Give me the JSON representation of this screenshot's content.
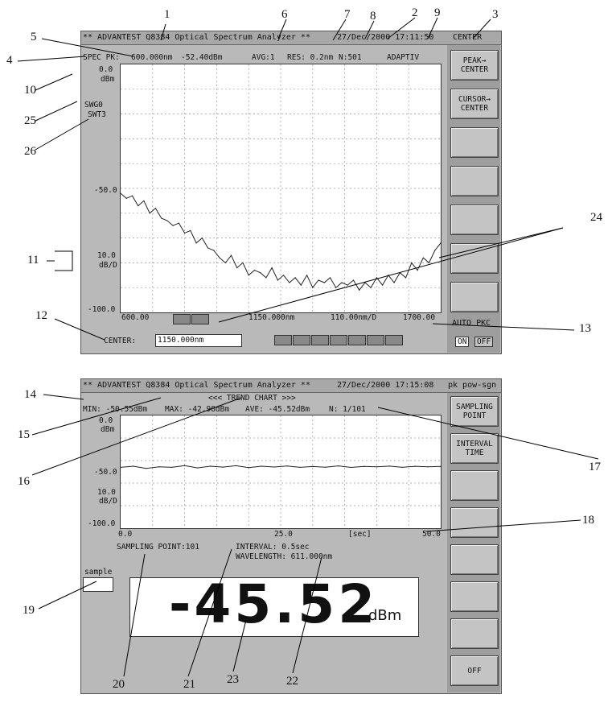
{
  "top_screen": {
    "title": "** ADVANTEST Q8384 Optical Spectrum Analyzer **",
    "date_time": "27/Dec/2000 17:11:50",
    "active_function": "CENTER",
    "marker_line": {
      "label": "SPEC PK:",
      "wavelength": "600.000nm",
      "level": "-52.40dBm",
      "avg": "AVG:1",
      "res": "RES: 0.2nm",
      "points": "N:501",
      "mode": "ADAPTIV"
    },
    "y_labels": {
      "top": "0.0",
      "top_unit": "dBm",
      "mid": "-50.0",
      "scale": "10.0",
      "scale_unit": "dB/D",
      "bottom": "-100.0"
    },
    "sweep_labels": {
      "swg": "SWG0",
      "swt": "SWT3"
    },
    "x_labels": {
      "start": "600.00",
      "center": "1150.000nm",
      "span": "110.00nm/D",
      "stop": "1700.00"
    },
    "center_label": "CENTER:",
    "center_value": "1150.000nm",
    "status_buttons": [
      "",
      "",
      "",
      "",
      "",
      "",
      ""
    ],
    "softkeys": [
      "PEAK→\nCENTER",
      "CURSOR→\nCENTER",
      "",
      "",
      "",
      "",
      "",
      "AUTO PKC"
    ],
    "toggle": {
      "on": "ON",
      "off": "OFF"
    },
    "chart_data": {
      "type": "line",
      "title": "",
      "xlabel": "",
      "ylabel": "",
      "xlim": [
        600,
        1700
      ],
      "ylim": [
        -100,
        0
      ],
      "x": [
        600,
        620,
        640,
        660,
        680,
        700,
        720,
        740,
        760,
        780,
        800,
        820,
        840,
        860,
        880,
        900,
        920,
        940,
        960,
        980,
        1000,
        1020,
        1040,
        1060,
        1080,
        1100,
        1120,
        1140,
        1160,
        1180,
        1200,
        1220,
        1240,
        1260,
        1280,
        1300,
        1320,
        1340,
        1360,
        1380,
        1400,
        1420,
        1440,
        1460,
        1480,
        1500,
        1520,
        1540,
        1560,
        1580,
        1600,
        1620,
        1640,
        1660,
        1680,
        1700
      ],
      "y": [
        -52,
        -54,
        -53,
        -57,
        -55,
        -60,
        -58,
        -62,
        -63,
        -65,
        -64,
        -68,
        -67,
        -72,
        -70,
        -74,
        -75,
        -78,
        -80,
        -77,
        -82,
        -80,
        -85,
        -83,
        -84,
        -86,
        -82,
        -87,
        -85,
        -88,
        -86,
        -89,
        -85,
        -90,
        -87,
        -88,
        -86,
        -90,
        -88,
        -89,
        -87,
        -91,
        -88,
        -90,
        -86,
        -89,
        -85,
        -88,
        -84,
        -86,
        -80,
        -83,
        -78,
        -80,
        -75,
        -72
      ]
    }
  },
  "bottom_screen": {
    "title": "** ADVANTEST Q8384 Optical Spectrum Analyzer **",
    "date_time": "27/Dec/2000 17:15:08",
    "active_function": "pk pow-sgn",
    "chart_title": "<<<  TREND CHART  >>>",
    "stats": {
      "min": "MIN: -50.55dBm",
      "max": "MAX: -42.98dBm",
      "ave": "AVE: -45.52dBm",
      "n": "N:   1/101"
    },
    "y_labels": {
      "top": "0.0",
      "top_unit": "dBm",
      "mid": "-50.0",
      "scale": "10.0",
      "scale_unit": "dB/D",
      "bottom": "-100.0"
    },
    "x_labels": {
      "start": "0.0",
      "mid": "25.0",
      "unit": "[sec]",
      "end": "50.0"
    },
    "sampling_point": "SAMPLING POINT:101",
    "interval": "INTERVAL:    0.5sec",
    "wavelength": "WAVELENGTH:  611.000nm",
    "sample_label": "sample",
    "big_value": "-45.52",
    "big_unit": "dBm",
    "softkeys": [
      "SAMPLING\nPOINT",
      "INTERVAL\nTIME",
      "",
      "",
      "",
      "",
      "",
      "OFF"
    ],
    "chart_data": {
      "type": "line",
      "title": "TREND CHART",
      "xlabel": "[sec]",
      "ylabel": "",
      "xlim": [
        0,
        50
      ],
      "ylim": [
        -100,
        0
      ],
      "x": [
        0,
        2,
        4,
        6,
        8,
        10,
        12,
        14,
        16,
        18,
        20,
        22,
        24,
        26,
        28,
        30,
        32,
        34,
        36,
        38,
        40,
        42,
        44,
        46,
        48,
        50
      ],
      "y": [
        -46,
        -45,
        -47,
        -45.5,
        -46,
        -44.5,
        -46.5,
        -45,
        -45.8,
        -44.6,
        -46.2,
        -45,
        -45.7,
        -44.8,
        -46,
        -45.3,
        -45.9,
        -44.7,
        -46.1,
        -45.2,
        -45.6,
        -44.9,
        -46,
        -45.1,
        -45.5,
        -45.2
      ]
    }
  },
  "callouts": [
    "1",
    "2",
    "3",
    "4",
    "5",
    "6",
    "7",
    "8",
    "9",
    "10",
    "11",
    "12",
    "13",
    "14",
    "15",
    "16",
    "17",
    "18",
    "19",
    "20",
    "21",
    "22",
    "23",
    "24",
    "25",
    "26"
  ]
}
